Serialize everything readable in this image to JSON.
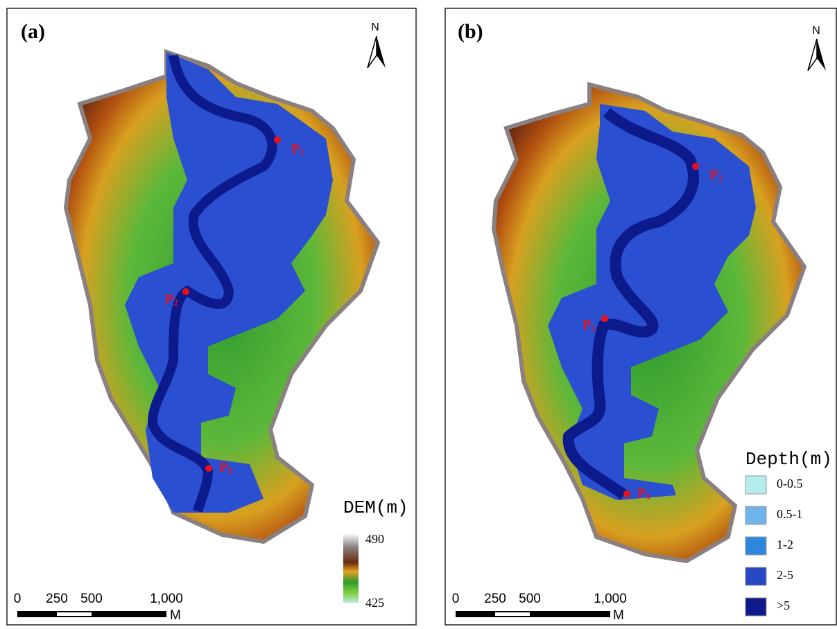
{
  "panels": [
    {
      "label": "(a)",
      "north": "N",
      "points": [
        {
          "name": "P",
          "sub": "1"
        },
        {
          "name": "P",
          "sub": "2"
        },
        {
          "name": "P",
          "sub": "3"
        }
      ],
      "scale_bar": {
        "ticks": [
          "0",
          "250",
          "500",
          "1,000"
        ],
        "unit": "M"
      },
      "legend": {
        "title": "DEM(m)",
        "max": "490",
        "min": "425"
      }
    },
    {
      "label": "(b)",
      "north": "N",
      "points": [
        {
          "name": "P",
          "sub": "1"
        },
        {
          "name": "P",
          "sub": "2"
        },
        {
          "name": "P",
          "sub": "3"
        }
      ],
      "scale_bar": {
        "ticks": [
          "0",
          "250",
          "500",
          "1,000"
        ],
        "unit": "M"
      },
      "legend": {
        "title": "Depth(m)",
        "items": [
          {
            "label": "0-0.5",
            "color": "#b5ecec"
          },
          {
            "label": "0.5-1",
            "color": "#6fb4ea"
          },
          {
            "label": "1-2",
            "color": "#2e86de"
          },
          {
            "label": "2-5",
            "color": "#2747c4"
          },
          {
            "label": ">5",
            "color": "#0c1a8c"
          }
        ]
      }
    }
  ]
}
